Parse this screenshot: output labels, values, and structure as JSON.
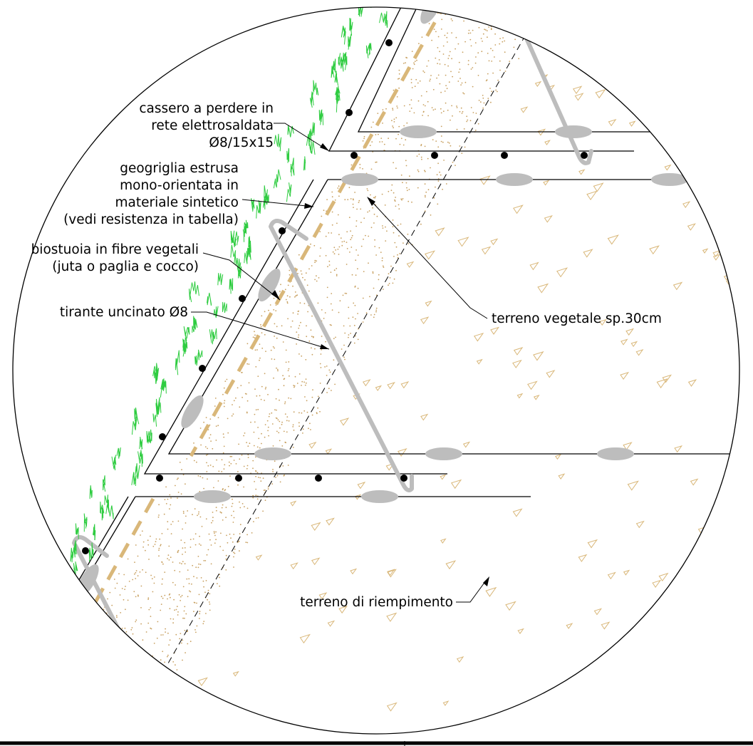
{
  "labels": {
    "cassero": [
      "cassero a perdere in",
      "rete elettrosaldata",
      "Ø8/15x15"
    ],
    "geogriglia": [
      "geogriglia estrusa",
      "mono-orientata in",
      "materiale sintetico",
      "(vedi resistenza in tabella)"
    ],
    "biostuoia": [
      "biostuoia in fibre vegetali",
      "(juta o paglia e cocco)"
    ],
    "tirante": "tirante uncinato Ø8",
    "terreno_vegetale": "terreno vegetale sp.30cm",
    "terreno_riempimento": "terreno di riempimento"
  },
  "colors": {
    "line": "#000000",
    "rod": "#bdbdbd",
    "mat": "#d9b779",
    "stipple": "#c8a060",
    "grass": "#2ecc40",
    "background": "#ffffff"
  },
  "icons": {
    "fill_soil": "triangle-aggregate-symbol",
    "topsoil": "stipple-dots",
    "grass": "grass-tuft"
  }
}
